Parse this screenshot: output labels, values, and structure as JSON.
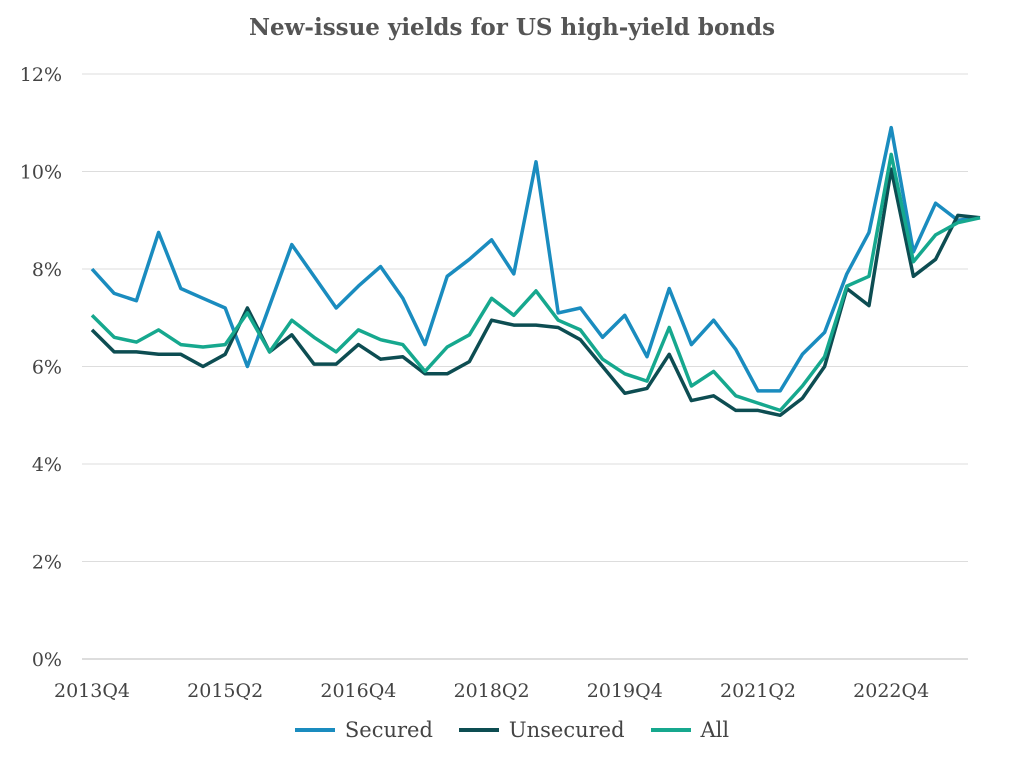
{
  "chart_data": {
    "type": "line",
    "title": "New-issue yields for US high-yield bonds",
    "xlabel": "",
    "ylabel": "",
    "ylim": [
      0,
      12
    ],
    "yticks": [
      "0%",
      "2%",
      "4%",
      "6%",
      "8%",
      "10%",
      "12%"
    ],
    "xtick_labels": [
      "2013Q4",
      "2015Q2",
      "2016Q4",
      "2018Q2",
      "2019Q4",
      "2021Q2",
      "2022Q4"
    ],
    "categories": [
      "2013Q4",
      "2014Q1",
      "2014Q2",
      "2014Q3",
      "2014Q4",
      "2015Q1",
      "2015Q2",
      "2015Q3",
      "2015Q4",
      "2016Q1",
      "2016Q2",
      "2016Q3",
      "2016Q4",
      "2017Q1",
      "2017Q2",
      "2017Q3",
      "2017Q4",
      "2018Q1",
      "2018Q2",
      "2018Q3",
      "2018Q4",
      "2019Q1",
      "2019Q2",
      "2019Q3",
      "2019Q4",
      "2020Q1",
      "2020Q2",
      "2020Q3",
      "2020Q4",
      "2021Q1",
      "2021Q2",
      "2021Q3",
      "2021Q4",
      "2022Q1",
      "2022Q2",
      "2022Q3",
      "2022Q4",
      "2023Q1",
      "2023Q2",
      "2023Q3",
      "2023Q4"
    ],
    "grid": true,
    "legend_position": "bottom",
    "series": [
      {
        "name": "Secured",
        "color": "#1a8cbf",
        "values": [
          8.0,
          7.5,
          7.35,
          8.75,
          7.6,
          7.4,
          7.2,
          6.0,
          7.25,
          8.5,
          7.85,
          7.2,
          7.65,
          8.05,
          7.4,
          6.45,
          7.85,
          8.2,
          8.6,
          7.9,
          10.2,
          7.1,
          7.2,
          6.6,
          7.05,
          6.2,
          7.6,
          6.45,
          6.95,
          6.35,
          5.5,
          5.5,
          6.25,
          6.7,
          7.9,
          8.75,
          10.9,
          8.35,
          9.35,
          9.0,
          9.05
        ]
      },
      {
        "name": "Unsecured",
        "color": "#0d4d52",
        "values": [
          6.75,
          6.3,
          6.3,
          6.25,
          6.25,
          6.0,
          6.25,
          7.2,
          6.3,
          6.65,
          6.05,
          6.05,
          6.45,
          6.15,
          6.2,
          5.85,
          5.85,
          6.1,
          6.95,
          6.85,
          6.85,
          6.8,
          6.55,
          6.0,
          5.45,
          5.55,
          6.25,
          5.3,
          5.4,
          5.1,
          5.1,
          5.0,
          5.35,
          6.0,
          7.6,
          7.25,
          10.05,
          7.85,
          8.2,
          9.1,
          9.05
        ]
      },
      {
        "name": "All",
        "color": "#16a88e",
        "values": [
          7.05,
          6.6,
          6.5,
          6.75,
          6.45,
          6.4,
          6.45,
          7.1,
          6.3,
          6.95,
          6.6,
          6.3,
          6.75,
          6.55,
          6.45,
          5.9,
          6.4,
          6.65,
          7.4,
          7.05,
          7.55,
          6.95,
          6.75,
          6.15,
          5.85,
          5.7,
          6.8,
          5.6,
          5.9,
          5.4,
          5.25,
          5.1,
          5.6,
          6.2,
          7.65,
          7.85,
          10.35,
          8.15,
          8.7,
          8.95,
          9.05
        ]
      }
    ]
  }
}
